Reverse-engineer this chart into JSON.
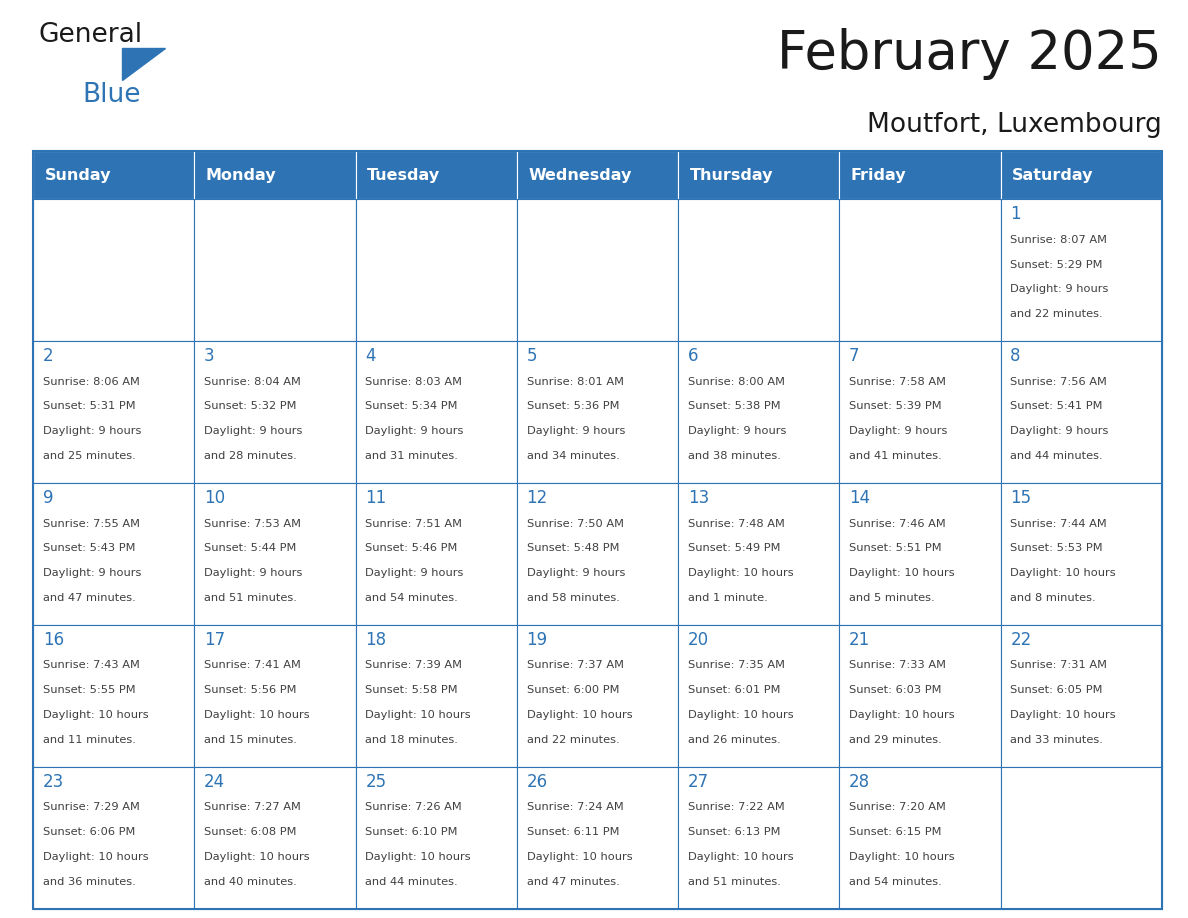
{
  "title": "February 2025",
  "subtitle": "Moutfort, Luxembourg",
  "days_of_week": [
    "Sunday",
    "Monday",
    "Tuesday",
    "Wednesday",
    "Thursday",
    "Friday",
    "Saturday"
  ],
  "header_bg": "#2E74B5",
  "header_text": "#FFFFFF",
  "cell_bg": "#FFFFFF",
  "cell_border": "#2E74B5",
  "day_number_color": "#2E74B5",
  "info_text_color": "#404040",
  "title_color": "#1a1a1a",
  "logo_general_color": "#1a1a1a",
  "logo_blue_color": "#2E74B5",
  "calendar": [
    [
      null,
      null,
      null,
      null,
      null,
      null,
      {
        "day": 1,
        "sunrise": "8:07 AM",
        "sunset": "5:29 PM",
        "daylight": "9 hours and 22 minutes."
      }
    ],
    [
      {
        "day": 2,
        "sunrise": "8:06 AM",
        "sunset": "5:31 PM",
        "daylight": "9 hours and 25 minutes."
      },
      {
        "day": 3,
        "sunrise": "8:04 AM",
        "sunset": "5:32 PM",
        "daylight": "9 hours and 28 minutes."
      },
      {
        "day": 4,
        "sunrise": "8:03 AM",
        "sunset": "5:34 PM",
        "daylight": "9 hours and 31 minutes."
      },
      {
        "day": 5,
        "sunrise": "8:01 AM",
        "sunset": "5:36 PM",
        "daylight": "9 hours and 34 minutes."
      },
      {
        "day": 6,
        "sunrise": "8:00 AM",
        "sunset": "5:38 PM",
        "daylight": "9 hours and 38 minutes."
      },
      {
        "day": 7,
        "sunrise": "7:58 AM",
        "sunset": "5:39 PM",
        "daylight": "9 hours and 41 minutes."
      },
      {
        "day": 8,
        "sunrise": "7:56 AM",
        "sunset": "5:41 PM",
        "daylight": "9 hours and 44 minutes."
      }
    ],
    [
      {
        "day": 9,
        "sunrise": "7:55 AM",
        "sunset": "5:43 PM",
        "daylight": "9 hours and 47 minutes."
      },
      {
        "day": 10,
        "sunrise": "7:53 AM",
        "sunset": "5:44 PM",
        "daylight": "9 hours and 51 minutes."
      },
      {
        "day": 11,
        "sunrise": "7:51 AM",
        "sunset": "5:46 PM",
        "daylight": "9 hours and 54 minutes."
      },
      {
        "day": 12,
        "sunrise": "7:50 AM",
        "sunset": "5:48 PM",
        "daylight": "9 hours and 58 minutes."
      },
      {
        "day": 13,
        "sunrise": "7:48 AM",
        "sunset": "5:49 PM",
        "daylight": "10 hours and 1 minute."
      },
      {
        "day": 14,
        "sunrise": "7:46 AM",
        "sunset": "5:51 PM",
        "daylight": "10 hours and 5 minutes."
      },
      {
        "day": 15,
        "sunrise": "7:44 AM",
        "sunset": "5:53 PM",
        "daylight": "10 hours and 8 minutes."
      }
    ],
    [
      {
        "day": 16,
        "sunrise": "7:43 AM",
        "sunset": "5:55 PM",
        "daylight": "10 hours and 11 minutes."
      },
      {
        "day": 17,
        "sunrise": "7:41 AM",
        "sunset": "5:56 PM",
        "daylight": "10 hours and 15 minutes."
      },
      {
        "day": 18,
        "sunrise": "7:39 AM",
        "sunset": "5:58 PM",
        "daylight": "10 hours and 18 minutes."
      },
      {
        "day": 19,
        "sunrise": "7:37 AM",
        "sunset": "6:00 PM",
        "daylight": "10 hours and 22 minutes."
      },
      {
        "day": 20,
        "sunrise": "7:35 AM",
        "sunset": "6:01 PM",
        "daylight": "10 hours and 26 minutes."
      },
      {
        "day": 21,
        "sunrise": "7:33 AM",
        "sunset": "6:03 PM",
        "daylight": "10 hours and 29 minutes."
      },
      {
        "day": 22,
        "sunrise": "7:31 AM",
        "sunset": "6:05 PM",
        "daylight": "10 hours and 33 minutes."
      }
    ],
    [
      {
        "day": 23,
        "sunrise": "7:29 AM",
        "sunset": "6:06 PM",
        "daylight": "10 hours and 36 minutes."
      },
      {
        "day": 24,
        "sunrise": "7:27 AM",
        "sunset": "6:08 PM",
        "daylight": "10 hours and 40 minutes."
      },
      {
        "day": 25,
        "sunrise": "7:26 AM",
        "sunset": "6:10 PM",
        "daylight": "10 hours and 44 minutes."
      },
      {
        "day": 26,
        "sunrise": "7:24 AM",
        "sunset": "6:11 PM",
        "daylight": "10 hours and 47 minutes."
      },
      {
        "day": 27,
        "sunrise": "7:22 AM",
        "sunset": "6:13 PM",
        "daylight": "10 hours and 51 minutes."
      },
      {
        "day": 28,
        "sunrise": "7:20 AM",
        "sunset": "6:15 PM",
        "daylight": "10 hours and 54 minutes."
      },
      null
    ]
  ]
}
